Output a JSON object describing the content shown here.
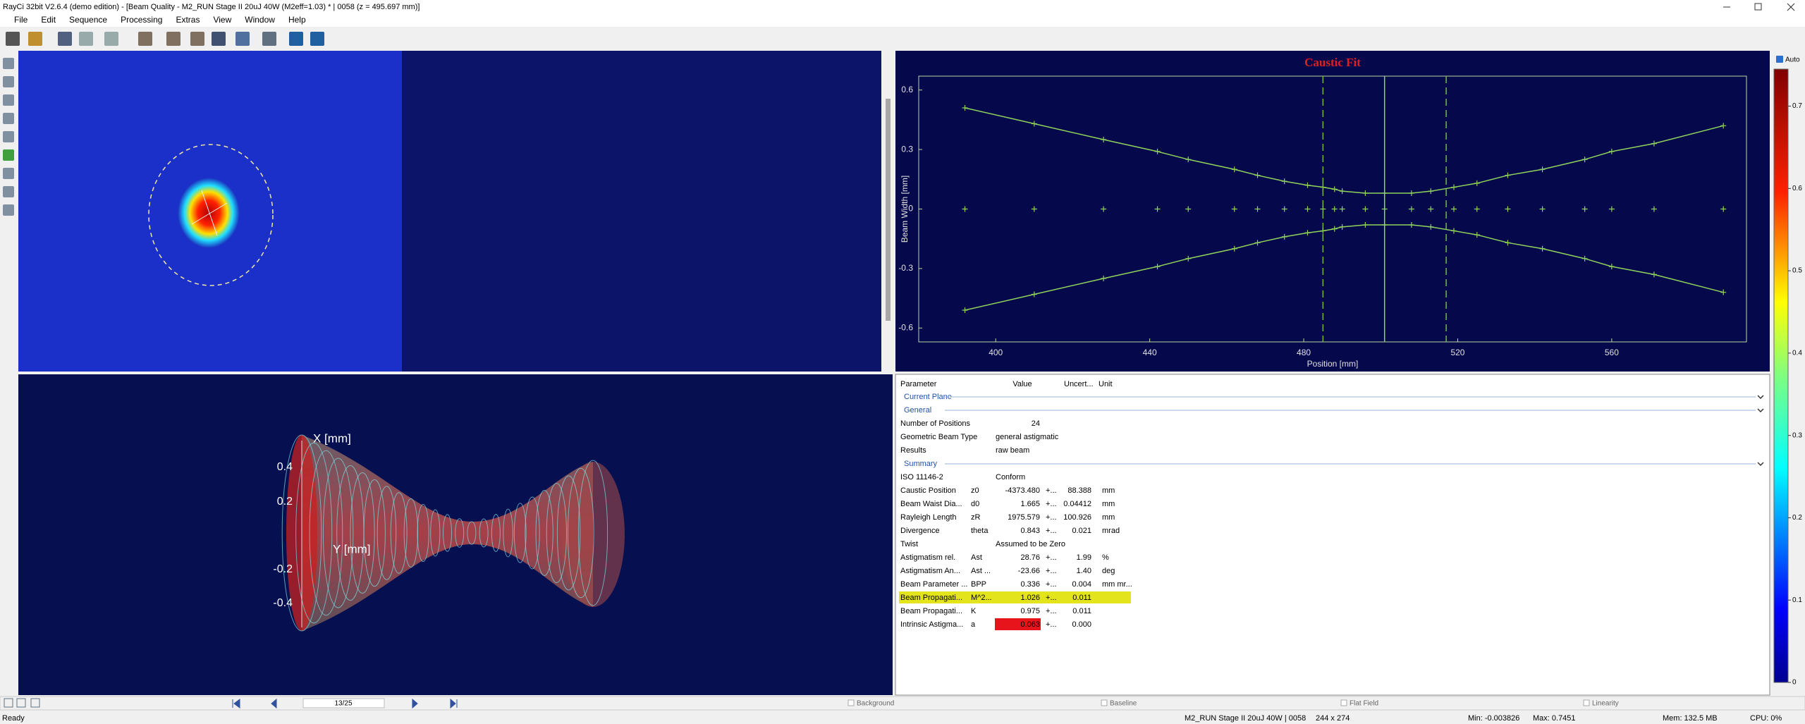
{
  "window_title": "RayCi 32bit V2.6.4 (demo edition) - [Beam Quality - M2_RUN Stage II 20uJ 40W (M2eff=1.03) * | 0058 (z = 495.697 mm)]",
  "menu": [
    "File",
    "Edit",
    "Sequence",
    "Processing",
    "Extras",
    "View",
    "Window",
    "Help"
  ],
  "chart_data": {
    "type": "line",
    "title": "Caustic Fit",
    "x_label": "Position [mm]",
    "y_label": "Beam Width [mm]",
    "x": [
      392,
      410,
      428,
      442,
      450,
      462,
      468,
      475,
      481,
      485,
      488,
      490,
      496,
      501,
      508,
      513,
      519,
      525,
      533,
      542,
      553,
      560,
      571,
      589
    ],
    "series": [
      {
        "color": "#8fd35a",
        "values": [
          0.51,
          0.43,
          0.35,
          0.29,
          0.25,
          0.2,
          0.17,
          0.14,
          0.12,
          0.11,
          0.1,
          0.09,
          0.08,
          0.08,
          0.08,
          0.09,
          0.11,
          0.13,
          0.17,
          0.2,
          0.25,
          0.29,
          0.33,
          0.42
        ]
      },
      {
        "color": "#8fd35a",
        "values": [
          -0.51,
          -0.43,
          -0.35,
          -0.29,
          -0.25,
          -0.2,
          -0.17,
          -0.14,
          -0.12,
          -0.11,
          -0.1,
          -0.09,
          -0.08,
          -0.08,
          -0.08,
          -0.09,
          -0.11,
          -0.13,
          -0.17,
          -0.2,
          -0.25,
          -0.29,
          -0.33,
          -0.42
        ]
      },
      {
        "color": "#8fd35a",
        "values": [
          0,
          0,
          0,
          0,
          0,
          0,
          0,
          0,
          0,
          0,
          0,
          0,
          0,
          0,
          0,
          0,
          0,
          0,
          0,
          0,
          0,
          0,
          0,
          0
        ]
      }
    ],
    "xlim": [
      380,
      595
    ],
    "ylim": [
      -0.67,
      0.67
    ],
    "xticks": [
      400,
      440,
      480,
      520,
      560
    ],
    "yticks": [
      -0.6,
      -0.3,
      0,
      0.3,
      0.6
    ],
    "waist_position": 501,
    "rayleigh_positions": [
      485,
      517
    ]
  },
  "colorbar": {
    "label": "Auto",
    "ylim": [
      0,
      0.745
    ],
    "yticks": [
      0,
      0.1,
      0.2,
      0.3,
      0.4,
      0.5,
      0.6,
      0.7
    ]
  },
  "view3d": {
    "x_axis_label": "X [mm]",
    "y_axis_label": "Y [mm]",
    "ticks": [
      "0.4",
      "0.2",
      "-0.2",
      "-0.4"
    ]
  },
  "table": {
    "headers": [
      "Parameter",
      "Value",
      "Uncert...",
      "Unit"
    ],
    "sections": [
      {
        "title": "Current Plane"
      },
      {
        "title": "General",
        "rows": [
          {
            "parameter": "Number of Positions",
            "value": "24"
          },
          {
            "parameter": "Geometric Beam Type",
            "value": "general astigmatic"
          },
          {
            "parameter": "Results",
            "value": "raw beam"
          }
        ]
      },
      {
        "title": "Summary",
        "rows": [
          {
            "parameter": "ISO 11146-2",
            "value": "Conform"
          },
          {
            "parameter": "Caustic Position",
            "symbol": "z0",
            "value": "-4373.480",
            "pm": "+...",
            "uncertainty": "88.388",
            "unit": "mm"
          },
          {
            "parameter": "Beam Waist Dia...",
            "symbol": "d0",
            "value": "1.665",
            "pm": "+...",
            "uncertainty": "0.04412",
            "unit": "mm"
          },
          {
            "parameter": "Rayleigh Length",
            "symbol": "zR",
            "value": "1975.579",
            "pm": "+...",
            "uncertainty": "100.926",
            "unit": "mm"
          },
          {
            "parameter": "Divergence",
            "symbol": "theta",
            "value": "0.843",
            "pm": "+...",
            "uncertainty": "0.021",
            "unit": "mrad"
          },
          {
            "parameter": "Twist",
            "value": "Assumed to be Zero"
          },
          {
            "parameter": "Astigmatism rel.",
            "symbol": "Ast",
            "value": "28.76",
            "pm": "+...",
            "uncertainty": "1.99",
            "unit": "%"
          },
          {
            "parameter": "Astigmatism An...",
            "symbol": "Ast ...",
            "value": "-23.66",
            "pm": "+...",
            "uncertainty": "1.40",
            "unit": "deg"
          },
          {
            "parameter": "Beam Parameter ...",
            "symbol": "BPP",
            "value": "0.336",
            "pm": "+...",
            "uncertainty": "0.004",
            "unit": "mm mr..."
          },
          {
            "parameter": "Beam Propagati...",
            "symbol": "M^2...",
            "value": "1.026",
            "pm": "+...",
            "uncertainty": "0.011",
            "highlight": "#e4e41c"
          },
          {
            "parameter": "Beam Propagati...",
            "symbol": "K",
            "value": "0.975",
            "pm": "+...",
            "uncertainty": "0.011"
          },
          {
            "parameter": "Intrinsic Astigma...",
            "symbol": "a",
            "value": "0.063",
            "pm": "+...",
            "uncertainty": "0.000",
            "value_color": "#e8141c"
          }
        ]
      }
    ]
  },
  "navigator": {
    "frame": "13/25",
    "options": [
      "Background",
      "Baseline",
      "Flat Field",
      "Linearity"
    ]
  },
  "status_bar": [
    "Ready",
    "M2_RUN Stage II 20uJ 40W | 0058",
    "244 x 274",
    "Min: -0.003826",
    "Max: 0.7451",
    "Mem: 132.5 MB",
    "CPU: 0%"
  ]
}
